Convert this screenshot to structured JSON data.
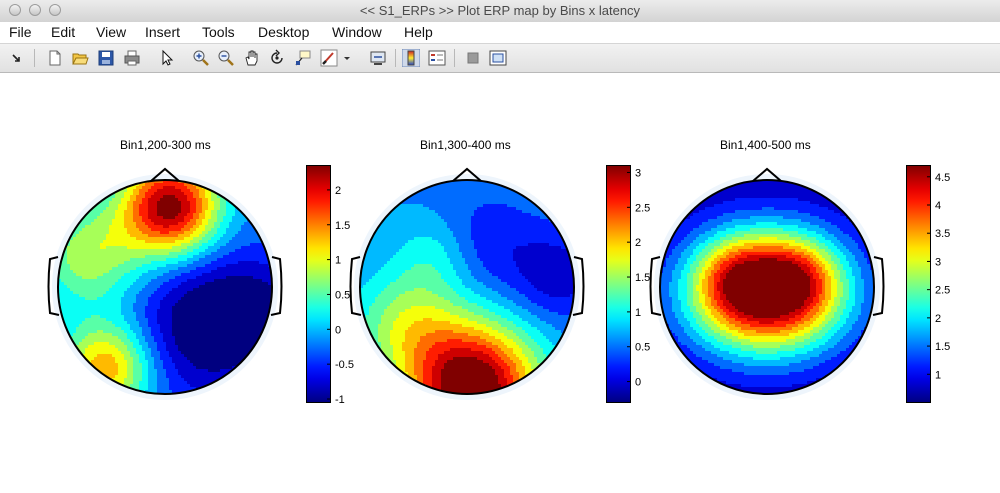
{
  "window": {
    "title": "<< S1_ERPs >>  Plot ERP map by Bins x latency"
  },
  "menu": [
    "File",
    "Edit",
    "View",
    "Insert",
    "Tools",
    "Desktop",
    "Window",
    "Help"
  ],
  "toolbar": {
    "icons": [
      "dock-arrow-icon",
      "new-figure-icon",
      "open-file-icon",
      "save-icon",
      "print-icon",
      "edit-plot-icon",
      "zoom-in-icon",
      "zoom-out-icon",
      "pan-icon",
      "rotate-3d-icon",
      "data-cursor-icon",
      "brush-icon",
      "brush-dropdown-icon",
      "link-plot-icon",
      "insert-colorbar-icon",
      "insert-legend-icon",
      "hide-plot-tools-icon",
      "show-plot-tools-icon"
    ]
  },
  "colormap": "jet",
  "maps": [
    {
      "title": "Bin1,200-300 ms",
      "colorbar_ticks": [
        "2",
        "1.5",
        "1",
        "0.5",
        "0",
        "-0.5",
        "-1"
      ],
      "colorbar_tick_values": [
        2,
        1.5,
        1,
        0.5,
        0,
        -0.5,
        -1
      ],
      "range": [
        -1.05,
        2.35
      ]
    },
    {
      "title": "Bin1,300-400 ms",
      "colorbar_ticks": [
        "3",
        "2.5",
        "2",
        "1.5",
        "1",
        "0.5",
        "0"
      ],
      "colorbar_tick_values": [
        3,
        2.5,
        2,
        1.5,
        1,
        0.5,
        0
      ],
      "range": [
        -0.3,
        3.1
      ]
    },
    {
      "title": "Bin1,400-500 ms",
      "colorbar_ticks": [
        "4.5",
        "4",
        "3.5",
        "3",
        "2.5",
        "2",
        "1.5",
        "1"
      ],
      "colorbar_tick_values": [
        4.5,
        4,
        3.5,
        3,
        2.5,
        2,
        1.5,
        1
      ],
      "range": [
        0.5,
        4.7
      ]
    }
  ]
}
